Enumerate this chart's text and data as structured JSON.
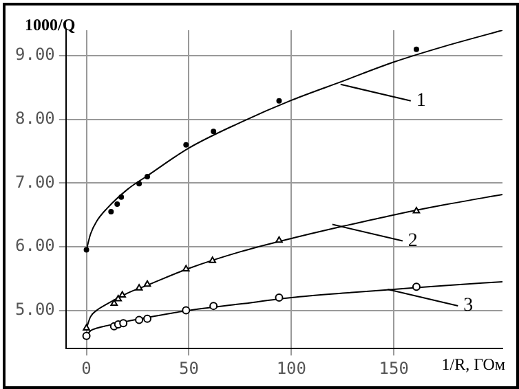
{
  "chart_data": {
    "type": "scatter",
    "xlabel": "1/R, ГОм",
    "ylabel": "1000/Q",
    "xlim": [
      -10,
      203
    ],
    "ylim": [
      4.4,
      9.4
    ],
    "xticks": [
      0,
      50,
      100,
      150
    ],
    "yticks": [
      {
        "value": 5,
        "label": "5.00"
      },
      {
        "value": 6,
        "label": "6.00"
      },
      {
        "value": 7,
        "label": "7.00"
      },
      {
        "value": 8,
        "label": "8.00"
      },
      {
        "value": 9,
        "label": "9.00"
      }
    ],
    "grid": true,
    "legend": false,
    "series": [
      {
        "marker": "circle",
        "color": "#000000",
        "x": [
          0,
          12,
          15,
          17,
          25.7,
          29.7,
          48.6,
          62,
          94,
          161
        ],
        "values": [
          5.95,
          6.55,
          6.67,
          6.78,
          6.99,
          7.1,
          7.6,
          7.81,
          8.29,
          9.1
        ]
      },
      {
        "marker": "triangle",
        "color": "#000000",
        "x": [
          0,
          13.5,
          15.5,
          17.5,
          25.7,
          29.7,
          48.6,
          61.5,
          94,
          161
        ],
        "values": [
          4.72,
          5.11,
          5.18,
          5.24,
          5.35,
          5.41,
          5.65,
          5.78,
          6.1,
          6.56
        ]
      },
      {
        "marker": "circle",
        "color": "#000000",
        "x": [
          0,
          13.5,
          15.5,
          18,
          25.7,
          29.7,
          48.6,
          62,
          94,
          161
        ],
        "values": [
          4.6,
          4.75,
          4.78,
          4.8,
          4.85,
          4.87,
          5.0,
          5.07,
          5.2,
          5.37
        ]
      },
      {
        "type": "line",
        "marker": "none",
        "color": "#000000",
        "x": [
          0,
          2,
          5,
          10,
          20,
          30,
          50,
          75,
          100,
          125,
          150,
          175,
          203
        ],
        "values": [
          5.95,
          6.2,
          6.4,
          6.6,
          6.9,
          7.12,
          7.55,
          7.95,
          8.3,
          8.6,
          8.9,
          9.15,
          9.4
        ]
      },
      {
        "type": "line",
        "marker": "none",
        "color": "#000000",
        "x": [
          0,
          2,
          5,
          10,
          20,
          30,
          50,
          75,
          100,
          125,
          150,
          175,
          203
        ],
        "values": [
          4.72,
          4.9,
          5.0,
          5.1,
          5.27,
          5.4,
          5.66,
          5.92,
          6.13,
          6.32,
          6.5,
          6.66,
          6.82
        ]
      },
      {
        "type": "line",
        "marker": "none",
        "color": "#000000",
        "x": [
          0,
          2,
          5,
          10,
          20,
          30,
          50,
          75,
          100,
          125,
          150,
          175,
          203
        ],
        "values": [
          4.6,
          4.68,
          4.72,
          4.76,
          4.83,
          4.89,
          5.0,
          5.1,
          5.2,
          5.27,
          5.33,
          5.39,
          5.45
        ]
      }
    ],
    "annotations": [
      {
        "text": "1",
        "x": 124,
        "y": 8.55
      },
      {
        "text": "2",
        "x": 120,
        "y": 6.35
      },
      {
        "text": "3",
        "x": 147,
        "y": 5.33
      }
    ]
  }
}
